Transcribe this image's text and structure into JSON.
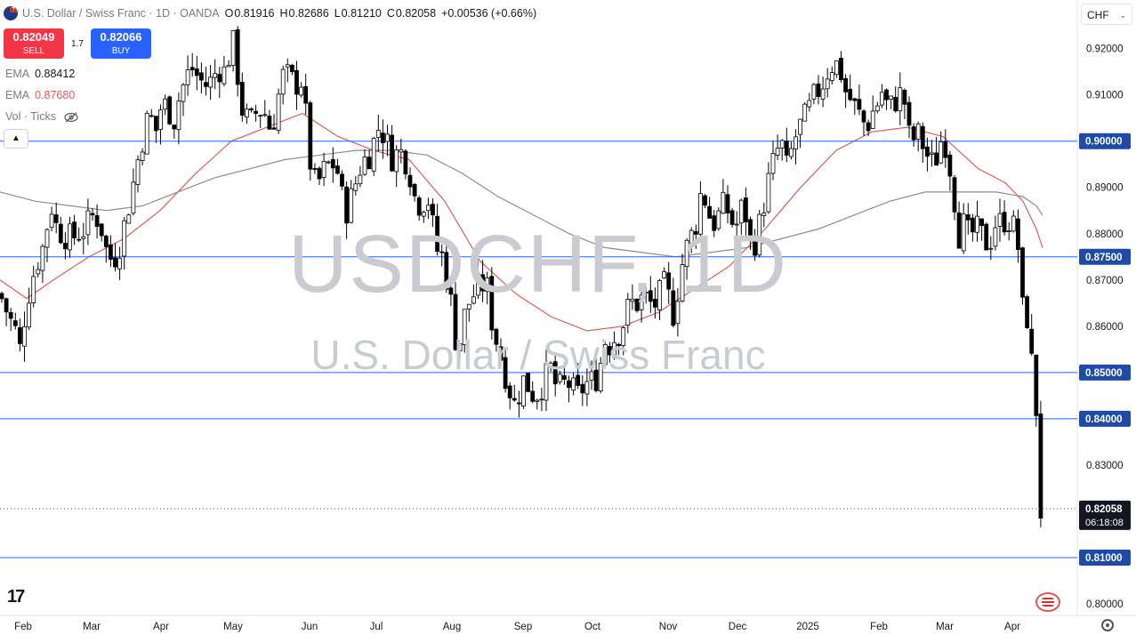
{
  "header": {
    "title": "U.S. Dollar / Swiss Franc · 1D · OANDA",
    "o_label": "O",
    "o": "0.81916",
    "h_label": "H",
    "h": "0.82686",
    "l_label": "L",
    "l": "0.81210",
    "c_label": "C",
    "c": "0.82058",
    "change": "+0.00536 (+0.66%)"
  },
  "trade": {
    "sell_price": "0.82049",
    "sell_label": "SELL",
    "spread": "1.7",
    "buy_price": "0.82066",
    "buy_label": "BUY"
  },
  "indicators": [
    {
      "name": "EMA",
      "value": "0.88412",
      "color": "#131722"
    },
    {
      "name": "EMA",
      "value": "0.87680",
      "color": "#e05a5a"
    },
    {
      "name": "Vol · Ticks",
      "value": "",
      "color": "#787b86"
    }
  ],
  "currency_button": "CHF",
  "watermark": {
    "symbol": "USDCHF, 1D",
    "description": "U.S. Dollar / Swiss Franc"
  },
  "colors": {
    "up_candle": "#ffffff",
    "down_candle": "#000000",
    "line_level": "#2962ff",
    "label_bg": "#1e4ba8",
    "ema_50": "#e05a5a",
    "ema_200": "#8c8c8c",
    "price_label_bg": "#131722"
  },
  "chart_data": {
    "type": "candlestick",
    "symbol": "USDCHF",
    "timeframe": "1D",
    "ylim": [
      0.7975,
      0.9305
    ],
    "y_ticks": [
      "0.80000",
      "0.81000",
      "0.82000",
      "0.83000",
      "0.84000",
      "0.85000",
      "0.86000",
      "0.87000",
      "0.88000",
      "0.89000",
      "0.90000",
      "0.91000",
      "0.92000"
    ],
    "x_labels": [
      "Feb",
      "Mar",
      "Apr",
      "May",
      "Jun",
      "Jul",
      "Aug",
      "Sep",
      "Oct",
      "Nov",
      "Dec",
      "2025",
      "Feb",
      "Mar",
      "Apr"
    ],
    "horizontal_levels": [
      {
        "value": 0.9,
        "label": "0.90000"
      },
      {
        "value": 0.875,
        "label": "0.87500"
      },
      {
        "value": 0.85,
        "label": "0.85000"
      },
      {
        "value": 0.84,
        "label": "0.84000"
      },
      {
        "value": 0.81,
        "label": "0.81000"
      }
    ],
    "last_price": {
      "value": 0.82058,
      "label": "0.82058",
      "countdown": "06:18:08"
    },
    "close_path": [
      [
        0,
        0.867
      ],
      [
        10,
        0.862
      ],
      [
        20,
        0.858
      ],
      [
        25,
        0.852
      ],
      [
        28,
        0.864
      ],
      [
        40,
        0.873
      ],
      [
        50,
        0.878
      ],
      [
        57,
        0.887
      ],
      [
        62,
        0.882
      ],
      [
        70,
        0.88
      ],
      [
        80,
        0.879
      ],
      [
        95,
        0.881
      ],
      [
        105,
        0.884
      ],
      [
        112,
        0.883
      ],
      [
        120,
        0.876
      ],
      [
        127,
        0.874
      ],
      [
        135,
        0.878
      ],
      [
        140,
        0.882
      ],
      [
        148,
        0.889
      ],
      [
        157,
        0.898
      ],
      [
        162,
        0.902
      ],
      [
        168,
        0.906
      ],
      [
        175,
        0.902
      ],
      [
        180,
        0.907
      ],
      [
        188,
        0.908
      ],
      [
        195,
        0.904
      ],
      [
        202,
        0.91
      ],
      [
        208,
        0.913
      ],
      [
        215,
        0.916
      ],
      [
        222,
        0.914
      ],
      [
        230,
        0.912
      ],
      [
        238,
        0.913
      ],
      [
        245,
        0.916
      ],
      [
        252,
        0.915
      ],
      [
        258,
        0.919
      ],
      [
        262,
        0.921
      ],
      [
        266,
        0.917
      ],
      [
        270,
        0.908
      ],
      [
        276,
        0.905
      ],
      [
        282,
        0.904
      ],
      [
        290,
        0.907
      ],
      [
        298,
        0.906
      ],
      [
        305,
        0.902
      ],
      [
        312,
        0.909
      ],
      [
        318,
        0.914
      ],
      [
        325,
        0.914
      ],
      [
        332,
        0.912
      ],
      [
        338,
        0.914
      ],
      [
        344,
        0.905
      ],
      [
        350,
        0.893
      ],
      [
        356,
        0.89
      ],
      [
        362,
        0.893
      ],
      [
        370,
        0.895
      ],
      [
        378,
        0.895
      ],
      [
        384,
        0.888
      ],
      [
        390,
        0.885
      ],
      [
        397,
        0.889
      ],
      [
        404,
        0.894
      ],
      [
        410,
        0.896
      ],
      [
        418,
        0.898
      ],
      [
        424,
        0.903
      ],
      [
        430,
        0.902
      ],
      [
        436,
        0.899
      ],
      [
        442,
        0.896
      ],
      [
        448,
        0.898
      ],
      [
        454,
        0.897
      ],
      [
        460,
        0.894
      ],
      [
        466,
        0.888
      ],
      [
        474,
        0.886
      ],
      [
        480,
        0.889
      ],
      [
        486,
        0.882
      ],
      [
        492,
        0.876
      ],
      [
        498,
        0.875
      ],
      [
        504,
        0.868
      ],
      [
        510,
        0.862
      ],
      [
        514,
        0.853
      ],
      [
        518,
        0.858
      ],
      [
        524,
        0.864
      ],
      [
        530,
        0.866
      ],
      [
        536,
        0.868
      ],
      [
        542,
        0.869
      ],
      [
        548,
        0.868
      ],
      [
        552,
        0.862
      ],
      [
        558,
        0.857
      ],
      [
        565,
        0.852
      ],
      [
        572,
        0.847
      ],
      [
        578,
        0.843
      ],
      [
        584,
        0.846
      ],
      [
        590,
        0.849
      ],
      [
        596,
        0.846
      ],
      [
        602,
        0.845
      ],
      [
        608,
        0.847
      ],
      [
        614,
        0.849
      ],
      [
        620,
        0.851
      ],
      [
        626,
        0.846
      ],
      [
        632,
        0.847
      ],
      [
        638,
        0.848
      ],
      [
        644,
        0.846
      ],
      [
        650,
        0.845
      ],
      [
        656,
        0.847
      ],
      [
        662,
        0.848
      ],
      [
        668,
        0.848
      ],
      [
        674,
        0.851
      ],
      [
        680,
        0.857
      ],
      [
        686,
        0.856
      ],
      [
        692,
        0.858
      ],
      [
        698,
        0.859
      ],
      [
        704,
        0.863
      ],
      [
        710,
        0.865
      ],
      [
        716,
        0.865
      ],
      [
        722,
        0.866
      ],
      [
        728,
        0.866
      ],
      [
        734,
        0.864
      ],
      [
        740,
        0.866
      ],
      [
        746,
        0.869
      ],
      [
        752,
        0.866
      ],
      [
        758,
        0.862
      ],
      [
        764,
        0.871
      ],
      [
        770,
        0.876
      ],
      [
        776,
        0.879
      ],
      [
        782,
        0.882
      ],
      [
        788,
        0.889
      ],
      [
        794,
        0.887
      ],
      [
        800,
        0.882
      ],
      [
        806,
        0.883
      ],
      [
        812,
        0.886
      ],
      [
        818,
        0.885
      ],
      [
        824,
        0.882
      ],
      [
        830,
        0.882
      ],
      [
        836,
        0.888
      ],
      [
        842,
        0.878
      ],
      [
        848,
        0.878
      ],
      [
        854,
        0.882
      ],
      [
        860,
        0.888
      ],
      [
        866,
        0.893
      ],
      [
        872,
        0.897
      ],
      [
        878,
        0.9
      ],
      [
        884,
        0.894
      ],
      [
        890,
        0.898
      ],
      [
        896,
        0.902
      ],
      [
        902,
        0.904
      ],
      [
        908,
        0.906
      ],
      [
        914,
        0.909
      ],
      [
        920,
        0.911
      ],
      [
        926,
        0.913
      ],
      [
        932,
        0.916
      ],
      [
        938,
        0.917
      ],
      [
        944,
        0.916
      ],
      [
        950,
        0.911
      ],
      [
        956,
        0.909
      ],
      [
        962,
        0.907
      ],
      [
        968,
        0.905
      ],
      [
        974,
        0.903
      ],
      [
        980,
        0.906
      ],
      [
        986,
        0.908
      ],
      [
        992,
        0.911
      ],
      [
        998,
        0.907
      ],
      [
        1004,
        0.908
      ],
      [
        1010,
        0.91
      ],
      [
        1016,
        0.91
      ],
      [
        1020,
        0.903
      ],
      [
        1024,
        0.899
      ],
      [
        1030,
        0.902
      ],
      [
        1036,
        0.9
      ],
      [
        1042,
        0.897
      ],
      [
        1048,
        0.895
      ],
      [
        1054,
        0.897
      ],
      [
        1060,
        0.902
      ],
      [
        1066,
        0.897
      ],
      [
        1072,
        0.889
      ],
      [
        1078,
        0.88
      ],
      [
        1084,
        0.882
      ],
      [
        1090,
        0.879
      ],
      [
        1096,
        0.881
      ],
      [
        1102,
        0.88
      ],
      [
        1108,
        0.878
      ],
      [
        1114,
        0.879
      ],
      [
        1120,
        0.883
      ],
      [
        1126,
        0.882
      ],
      [
        1132,
        0.884
      ],
      [
        1138,
        0.881
      ],
      [
        1143,
        0.882
      ],
      [
        1147,
        0.868
      ],
      [
        1151,
        0.861
      ],
      [
        1155,
        0.862
      ],
      [
        1159,
        0.851
      ],
      [
        1163,
        0.857
      ],
      [
        1166,
        0.832
      ],
      [
        1169,
        0.82
      ],
      [
        1172,
        0.82
      ]
    ],
    "ema_50_path": [
      [
        0,
        0.87
      ],
      [
        30,
        0.866
      ],
      [
        60,
        0.87
      ],
      [
        100,
        0.875
      ],
      [
        140,
        0.879
      ],
      [
        180,
        0.885
      ],
      [
        220,
        0.893
      ],
      [
        260,
        0.9
      ],
      [
        300,
        0.903
      ],
      [
        340,
        0.906
      ],
      [
        380,
        0.901
      ],
      [
        420,
        0.898
      ],
      [
        460,
        0.896
      ],
      [
        500,
        0.887
      ],
      [
        540,
        0.874
      ],
      [
        580,
        0.867
      ],
      [
        620,
        0.862
      ],
      [
        660,
        0.859
      ],
      [
        700,
        0.86
      ],
      [
        740,
        0.863
      ],
      [
        780,
        0.868
      ],
      [
        820,
        0.873
      ],
      [
        860,
        0.881
      ],
      [
        900,
        0.89
      ],
      [
        940,
        0.898
      ],
      [
        980,
        0.902
      ],
      [
        1020,
        0.903
      ],
      [
        1060,
        0.901
      ],
      [
        1100,
        0.894
      ],
      [
        1130,
        0.891
      ],
      [
        1150,
        0.887
      ],
      [
        1165,
        0.881
      ],
      [
        1172,
        0.877
      ]
    ],
    "ema_200_path": [
      [
        0,
        0.889
      ],
      [
        40,
        0.887
      ],
      [
        80,
        0.886
      ],
      [
        120,
        0.885
      ],
      [
        160,
        0.886
      ],
      [
        200,
        0.889
      ],
      [
        240,
        0.892
      ],
      [
        280,
        0.894
      ],
      [
        320,
        0.896
      ],
      [
        360,
        0.897
      ],
      [
        400,
        0.898
      ],
      [
        440,
        0.898
      ],
      [
        480,
        0.897
      ],
      [
        520,
        0.893
      ],
      [
        560,
        0.888
      ],
      [
        600,
        0.884
      ],
      [
        640,
        0.88
      ],
      [
        680,
        0.877
      ],
      [
        720,
        0.876
      ],
      [
        760,
        0.875
      ],
      [
        800,
        0.876
      ],
      [
        840,
        0.877
      ],
      [
        880,
        0.879
      ],
      [
        920,
        0.881
      ],
      [
        960,
        0.884
      ],
      [
        1000,
        0.887
      ],
      [
        1040,
        0.889
      ],
      [
        1080,
        0.889
      ],
      [
        1120,
        0.889
      ],
      [
        1150,
        0.888
      ],
      [
        1165,
        0.886
      ],
      [
        1172,
        0.884
      ]
    ]
  }
}
